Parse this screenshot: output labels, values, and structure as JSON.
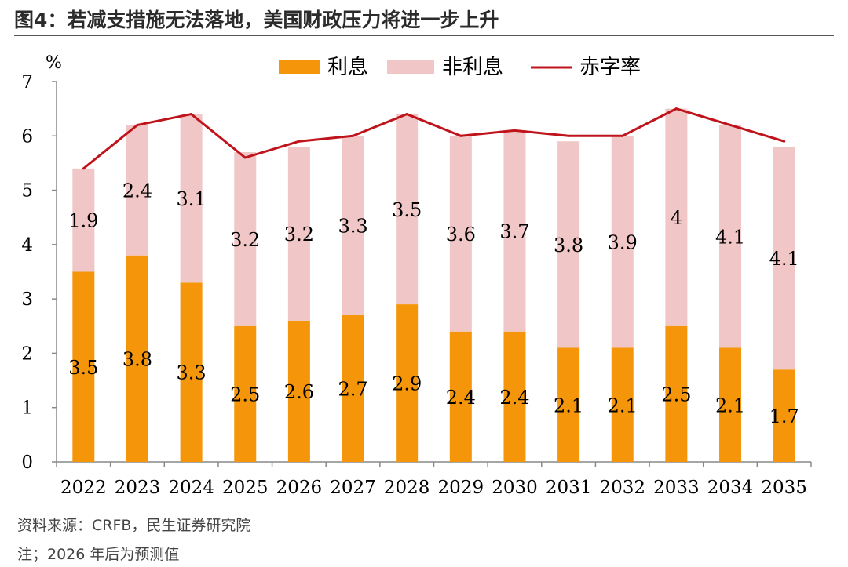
{
  "header": {
    "title": "图4：若减支措施无法落地，美国财政压力将进一步上升"
  },
  "footer": {
    "source": "资料来源：CRFB，民生证券研究院",
    "note": "注；2026 年后为预测值"
  },
  "colors": {
    "interest": "#f5960a",
    "non_interest": "#f0c6c6",
    "deficit": "#c0141c",
    "axis": "#888888",
    "text": "#000000"
  },
  "chart_data": {
    "type": "bar",
    "stacked": true,
    "title": "",
    "ylabel": "%",
    "xlabel": "",
    "ylim": [
      0,
      7
    ],
    "yticks": [
      0,
      1,
      2,
      3,
      4,
      5,
      6,
      7
    ],
    "grid": false,
    "legend_position": "top",
    "categories": [
      "2022",
      "2023",
      "2024",
      "2025",
      "2026",
      "2027",
      "2028",
      "2029",
      "2030",
      "2031",
      "2032",
      "2033",
      "2034",
      "2035"
    ],
    "series": [
      {
        "name": "利息",
        "kind": "bar",
        "labels": [
          "3.5",
          "3.8",
          "3.3",
          "2.5",
          "2.6",
          "2.7",
          "2.9",
          "2.4",
          "2.4",
          "2.1",
          "2.1",
          "2.5",
          "2.1",
          "1.7"
        ],
        "values": [
          3.5,
          3.8,
          3.3,
          2.5,
          2.6,
          2.7,
          2.9,
          2.4,
          2.4,
          2.1,
          2.1,
          2.5,
          2.1,
          1.7
        ]
      },
      {
        "name": "非利息",
        "kind": "bar",
        "labels": [
          "1.9",
          "2.4",
          "3.1",
          "3.2",
          "3.2",
          "3.3",
          "3.5",
          "3.6",
          "3.7",
          "3.8",
          "3.9",
          "4",
          "4.1",
          "4.1"
        ],
        "values": [
          1.9,
          2.4,
          3.1,
          3.2,
          3.2,
          3.3,
          3.5,
          3.6,
          3.7,
          3.8,
          3.9,
          4.0,
          4.1,
          4.1
        ]
      },
      {
        "name": "赤字率",
        "kind": "line",
        "values": [
          5.4,
          6.2,
          6.4,
          5.6,
          5.9,
          6.0,
          6.4,
          6.0,
          6.1,
          6.0,
          6.0,
          6.5,
          6.2,
          5.9
        ]
      }
    ]
  }
}
